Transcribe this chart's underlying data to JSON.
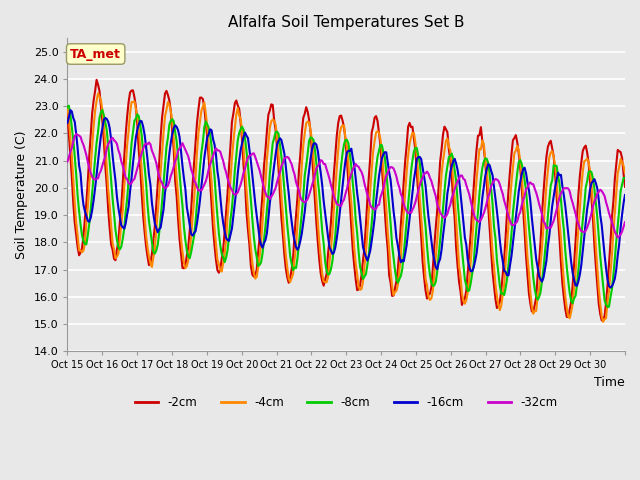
{
  "title": "Alfalfa Soil Temperatures Set B",
  "xlabel": "Time",
  "ylabel": "Soil Temperature (C)",
  "ylim": [
    14.0,
    25.5
  ],
  "yticks": [
    14.0,
    15.0,
    16.0,
    17.0,
    18.0,
    19.0,
    20.0,
    21.0,
    22.0,
    23.0,
    24.0,
    25.0
  ],
  "background_color": "#e8e8e8",
  "plot_bg_color": "#e8e8e8",
  "grid_color": "#ffffff",
  "series": [
    {
      "label": "-2cm",
      "color": "#cc0000",
      "lw": 1.5
    },
    {
      "label": "-4cm",
      "color": "#ff8800",
      "lw": 1.5
    },
    {
      "label": "-8cm",
      "color": "#00cc00",
      "lw": 1.5
    },
    {
      "label": "-16cm",
      "color": "#0000cc",
      "lw": 1.5
    },
    {
      "label": "-32cm",
      "color": "#cc00cc",
      "lw": 1.5
    }
  ],
  "xtick_positions": [
    0,
    1,
    2,
    3,
    4,
    5,
    6,
    7,
    8,
    9,
    10,
    11,
    12,
    13,
    14,
    15,
    16
  ],
  "xtick_labels": [
    "Oct 15",
    "Oct 16",
    "Oct 17",
    "Oct 18",
    "Oct 19",
    "Oct 20",
    "Oct 21",
    "Oct 22",
    "Oct 23",
    "Oct 24",
    "Oct 25",
    "Oct 26",
    "Oct 27",
    "Oct 28",
    "Oct 29",
    "Oct 30",
    ""
  ],
  "ta_met_label": "TA_met",
  "ta_met_color": "#cc0000",
  "ta_met_bg": "#ffffcc"
}
